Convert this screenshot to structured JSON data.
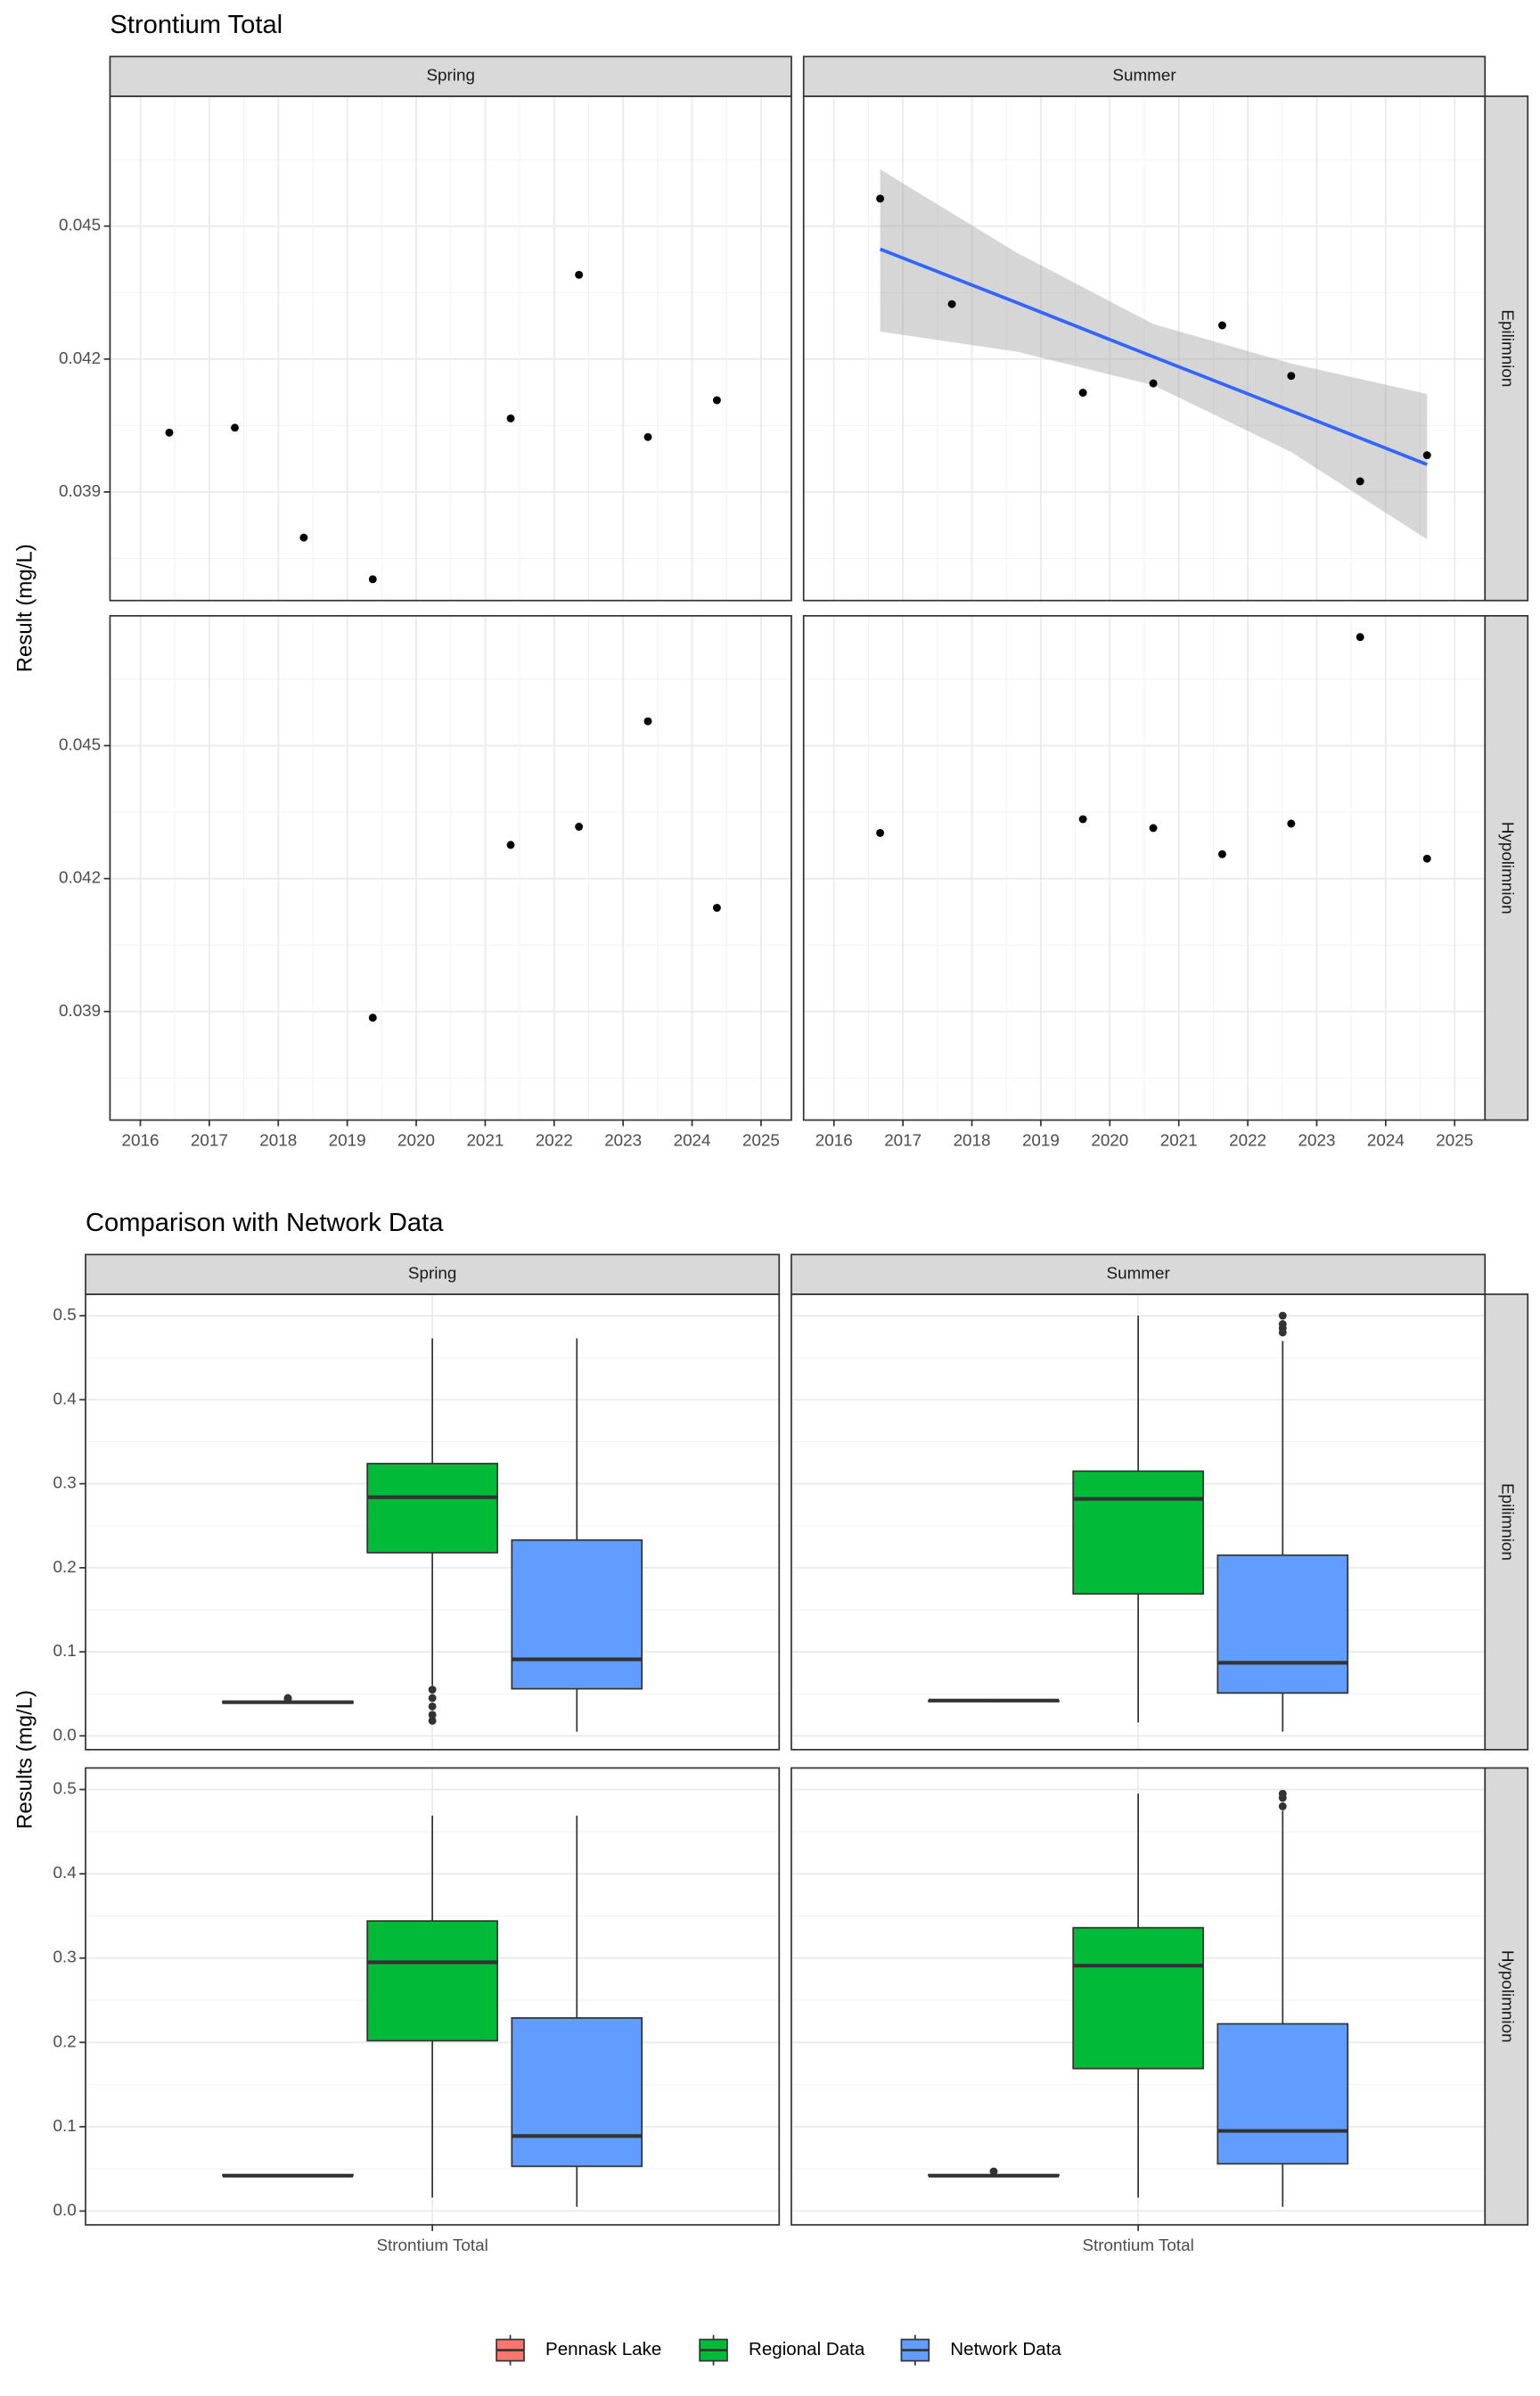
{
  "chart_data": [
    {
      "type": "scatter",
      "title": "Strontium Total",
      "y_label": "Result (mg/L)",
      "columns": [
        "Spring",
        "Summer"
      ],
      "rows": [
        "Epilimnion",
        "Hypolimnion"
      ],
      "xlim": [
        2015.56,
        2025.44
      ],
      "xticks": [
        2016,
        2017,
        2018,
        2019,
        2020,
        2021,
        2022,
        2023,
        2024,
        2025
      ],
      "ylim": [
        0.03655,
        0.04793
      ],
      "yticks": [
        0.039,
        0.042,
        0.045
      ],
      "grid": true,
      "color": "#000000",
      "panels": [
        [
          {
            "x": [
              2016.42,
              2017.37,
              2018.37,
              2019.37,
              2021.37,
              2022.36,
              2023.36,
              2024.36
            ],
            "values": [
              0.04034,
              0.04045,
              0.03797,
              0.03703,
              0.04066,
              0.0439,
              0.04024,
              0.04107
            ]
          },
          {
            "x": [
              2016.67,
              2017.71,
              2019.61,
              2020.63,
              2021.63,
              2022.63,
              2023.63,
              2024.6
            ],
            "values": [
              0.04562,
              0.04324,
              0.04124,
              0.04145,
              0.04276,
              0.04162,
              0.03924,
              0.03983
            ],
            "trend": {
              "color": "#3366FF",
              "x": [
                2016.67,
                2018.64,
                2020.63,
                2022.63,
                2024.6
              ],
              "values": [
                0.04448,
                0.04328,
                0.04205,
                0.04083,
                0.03962
              ],
              "upper": [
                0.04628,
                0.04441,
                0.04279,
                0.0419,
                0.04121
              ],
              "lower": [
                0.04262,
                0.04217,
                0.04141,
                0.0399,
                0.03793
              ]
            }
          }
        ],
        [
          {
            "x": [
              2019.37,
              2021.37,
              2022.36,
              2023.36,
              2024.36
            ],
            "values": [
              0.03886,
              0.04276,
              0.04317,
              0.04555,
              0.04134
            ]
          },
          {
            "x": [
              2016.67,
              2019.61,
              2020.63,
              2021.63,
              2022.63,
              2023.63,
              2024.6
            ],
            "values": [
              0.04303,
              0.04334,
              0.04314,
              0.04255,
              0.04324,
              0.04745,
              0.04245
            ]
          }
        ]
      ]
    },
    {
      "type": "box",
      "title": "Comparison with Network Data",
      "y_label": "Results (mg/L)",
      "columns": [
        "Spring",
        "Summer"
      ],
      "rows": [
        "Epilimnion",
        "Hypolimnion"
      ],
      "categories": [
        "Strontium Total"
      ],
      "ylim": [
        -0.0164,
        0.5255
      ],
      "yticks": [
        {
          "value": 0,
          "label": "0.0"
        },
        0.1,
        0.2,
        0.3,
        0.4,
        0.5
      ],
      "grid": true,
      "legend_position": "bottom",
      "series": [
        {
          "name": "Pennask Lake",
          "color": "#F8766D"
        },
        {
          "name": "Regional Data",
          "color": "#00BA38"
        },
        {
          "name": "Network Data",
          "color": "#619CFF"
        }
      ],
      "panels": [
        [
          [
            {
              "min": 0.038,
              "q1": 0.039,
              "median": 0.04,
              "q3": 0.041,
              "max": 0.042,
              "outliers": [
                0.045,
                0.044
              ]
            },
            {
              "min": 0.06,
              "q1": 0.218,
              "median": 0.284,
              "q3": 0.324,
              "max": 0.473,
              "outliers": [
                0.055,
                0.045,
                0.035,
                0.025,
                0.018
              ]
            },
            {
              "min": 0.005,
              "q1": 0.056,
              "median": 0.091,
              "q3": 0.233,
              "max": 0.473,
              "outliers": []
            }
          ],
          [
            {
              "min": 0.04,
              "q1": 0.041,
              "median": 0.042,
              "q3": 0.042,
              "max": 0.043,
              "outliers": []
            },
            {
              "min": 0.016,
              "q1": 0.169,
              "median": 0.282,
              "q3": 0.315,
              "max": 0.5,
              "outliers": []
            },
            {
              "min": 0.005,
              "q1": 0.051,
              "median": 0.087,
              "q3": 0.215,
              "max": 0.47,
              "outliers": [
                0.48,
                0.485,
                0.49,
                0.5
              ]
            }
          ]
        ],
        [
          [
            {
              "min": 0.041,
              "q1": 0.042,
              "median": 0.042,
              "q3": 0.043,
              "max": 0.043,
              "outliers": []
            },
            {
              "min": 0.016,
              "q1": 0.202,
              "median": 0.295,
              "q3": 0.344,
              "max": 0.469,
              "outliers": []
            },
            {
              "min": 0.005,
              "q1": 0.053,
              "median": 0.089,
              "q3": 0.229,
              "max": 0.469,
              "outliers": []
            }
          ],
          [
            {
              "min": 0.041,
              "q1": 0.042,
              "median": 0.042,
              "q3": 0.043,
              "max": 0.043,
              "outliers": [
                0.047
              ]
            },
            {
              "min": 0.016,
              "q1": 0.169,
              "median": 0.291,
              "q3": 0.336,
              "max": 0.495,
              "outliers": []
            },
            {
              "min": 0.005,
              "q1": 0.056,
              "median": 0.095,
              "q3": 0.222,
              "max": 0.475,
              "outliers": [
                0.48,
                0.49,
                0.495
              ]
            }
          ]
        ]
      ]
    }
  ]
}
